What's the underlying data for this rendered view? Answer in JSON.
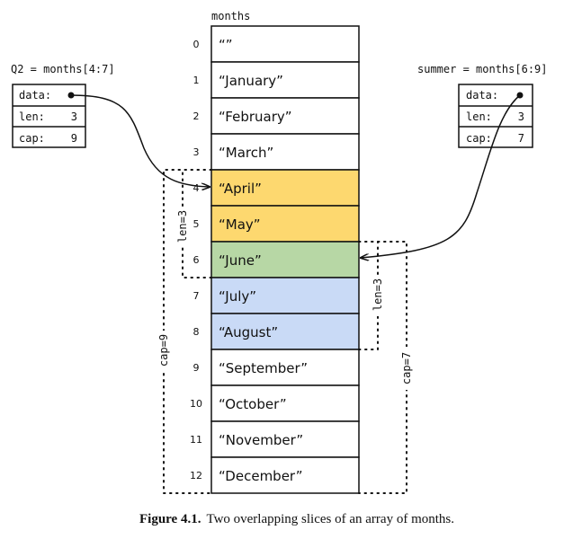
{
  "array": {
    "label": "months",
    "cells": [
      {
        "index": "0",
        "value": "“”",
        "color": "#ffffff"
      },
      {
        "index": "1",
        "value": "“January”",
        "color": "#ffffff"
      },
      {
        "index": "2",
        "value": "“February”",
        "color": "#ffffff"
      },
      {
        "index": "3",
        "value": "“March”",
        "color": "#ffffff"
      },
      {
        "index": "4",
        "value": "“April”",
        "color": "#fdd86f"
      },
      {
        "index": "5",
        "value": "“May”",
        "color": "#fdd86f"
      },
      {
        "index": "6",
        "value": "“June”",
        "color": "#b7d7a5"
      },
      {
        "index": "7",
        "value": "“July”",
        "color": "#c9daf6"
      },
      {
        "index": "8",
        "value": "“August”",
        "color": "#c9daf6"
      },
      {
        "index": "9",
        "value": "“September”",
        "color": "#ffffff"
      },
      {
        "index": "10",
        "value": "“October”",
        "color": "#ffffff"
      },
      {
        "index": "11",
        "value": "“November”",
        "color": "#ffffff"
      },
      {
        "index": "12",
        "value": "“December”",
        "color": "#ffffff"
      }
    ]
  },
  "q2": {
    "label": "Q2 = months[4:7]",
    "data_label": "data:",
    "len_label": "len:",
    "len": "3",
    "cap_label": "cap:",
    "cap": "9",
    "len_bracket": "len=3",
    "cap_bracket": "cap=9"
  },
  "summer": {
    "label": "summer = months[6:9]",
    "data_label": "data:",
    "len_label": "len:",
    "len": "3",
    "cap_label": "cap:",
    "cap": "7",
    "len_bracket": "len=3",
    "cap_bracket": "cap=7"
  },
  "caption": {
    "figure": "Figure 4.1.",
    "text": "Two overlapping slices of an array of months."
  }
}
